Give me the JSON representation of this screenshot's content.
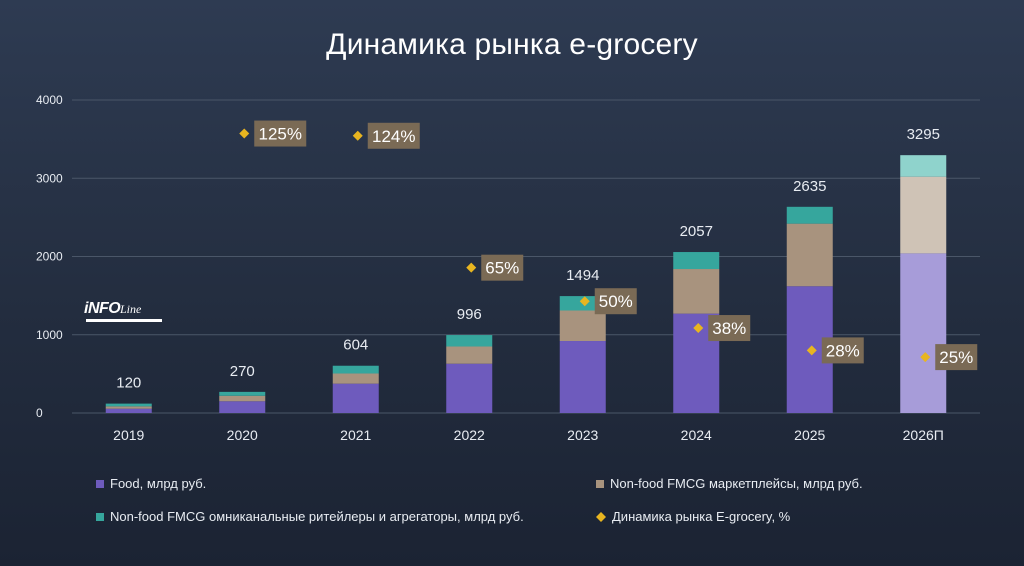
{
  "chart_data": {
    "type": "bar",
    "stacked": true,
    "title": "Динамика рынка e-grocery",
    "categories": [
      "2019",
      "2020",
      "2021",
      "2022",
      "2023",
      "2024",
      "2025",
      "2026П"
    ],
    "ylim": [
      0,
      4000
    ],
    "yticks": [
      "0",
      "1000",
      "2000",
      "3000",
      "4000"
    ],
    "grid": true,
    "legend_position": "bottom",
    "totals": [
      120,
      270,
      604,
      996,
      1494,
      2057,
      2635,
      3295
    ],
    "series": [
      {
        "name": "Food, млрд руб.",
        "color": "#6e5bbd",
        "values": [
          55,
          150,
          375,
          630,
          920,
          1270,
          1620,
          2040
        ]
      },
      {
        "name": "Non-food FMCG маркетплейсы, млрд руб.",
        "color": "#a8937e",
        "values": [
          30,
          70,
          130,
          220,
          390,
          570,
          800,
          980
        ]
      },
      {
        "name": "Non-food FMCG омниканальные ритейлеры и агрегаторы, млрд руб.",
        "color": "#36a69d",
        "values": [
          35,
          50,
          99,
          146,
          184,
          217,
          215,
          275
        ]
      }
    ],
    "growth_series": {
      "name": "Динамика рынка E-grocery, %",
      "color": "#e8b520",
      "points": [
        {
          "category": "2020",
          "value": 125,
          "label": "125%"
        },
        {
          "category": "2021",
          "value": 124,
          "label": "124%"
        },
        {
          "category": "2022",
          "value": 65,
          "label": "65%"
        },
        {
          "category": "2023",
          "value": 50,
          "label": "50%"
        },
        {
          "category": "2024",
          "value": 38,
          "label": "38%"
        },
        {
          "category": "2025",
          "value": 28,
          "label": "28%"
        },
        {
          "category": "2026П",
          "value": 25,
          "label": "25%"
        }
      ]
    },
    "last_bar_lighter": true
  },
  "logo": {
    "main": "iNFO",
    "script": "Line"
  },
  "colors": {
    "label_box": "#7a6a55",
    "grid": "#4a5668",
    "food_light": "#a79cd9",
    "marketplace_light": "#cfc3b6",
    "omni_light": "#8fd3cc"
  }
}
